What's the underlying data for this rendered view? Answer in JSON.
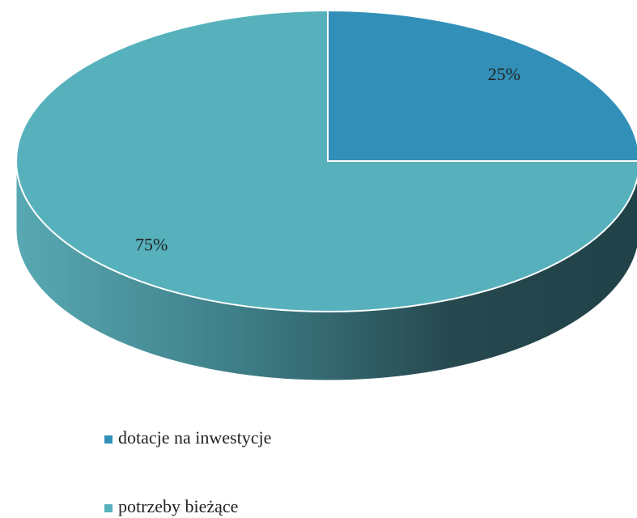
{
  "chart_data": {
    "type": "pie",
    "categories": [
      "dotacje na inwestycje",
      "potrzeby bieżące"
    ],
    "values": [
      25,
      75
    ],
    "value_labels": [
      "25%",
      "75%"
    ],
    "colors": [
      "#3290b8",
      "#56b1bc"
    ]
  }
}
